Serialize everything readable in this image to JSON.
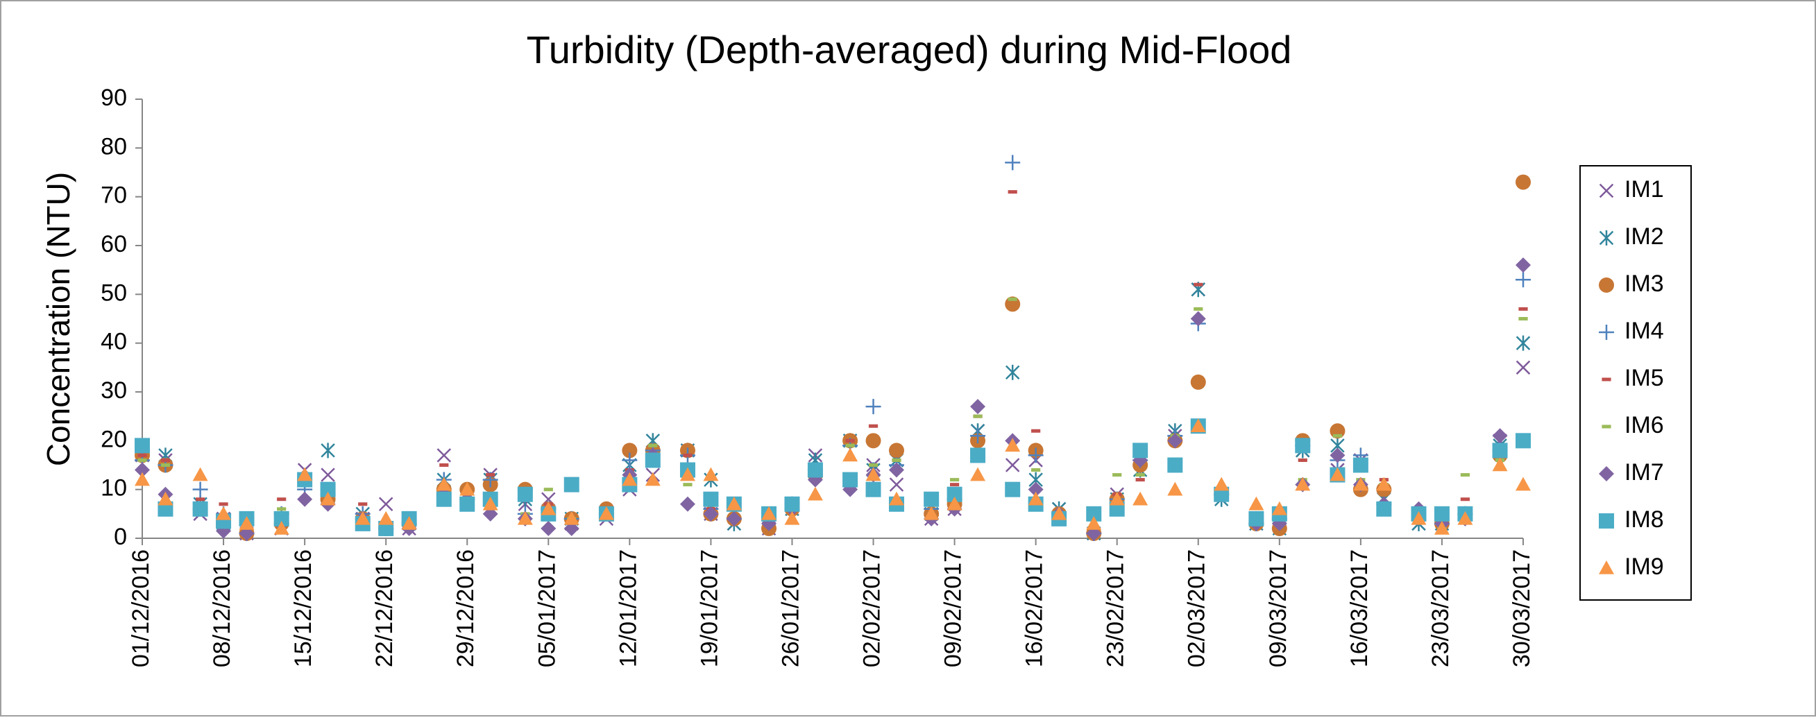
{
  "chart_data": {
    "type": "scatter",
    "title": "Turbidity (Depth-averaged) during Mid-Flood",
    "y_label": "Concentration (NTU)",
    "x": [
      "01/12/2016",
      "03/12/2016",
      "06/12/2016",
      "08/12/2016",
      "10/12/2016",
      "13/12/2016",
      "15/12/2016",
      "17/12/2016",
      "20/12/2016",
      "22/12/2016",
      "24/12/2016",
      "27/12/2016",
      "29/12/2016",
      "31/12/2016",
      "03/01/2017",
      "05/01/2017",
      "07/01/2017",
      "10/01/2017",
      "12/01/2017",
      "14/01/2017",
      "17/01/2017",
      "19/01/2017",
      "21/01/2017",
      "24/01/2017",
      "26/01/2017",
      "28/01/2017",
      "31/01/2017",
      "02/02/2017",
      "04/02/2017",
      "07/02/2017",
      "09/02/2017",
      "11/02/2017",
      "14/02/2017",
      "16/02/2017",
      "18/02/2017",
      "21/02/2017",
      "23/02/2017",
      "25/02/2017",
      "28/02/2017",
      "02/03/2017",
      "04/03/2017",
      "07/03/2017",
      "09/03/2017",
      "11/03/2017",
      "14/03/2017",
      "16/03/2017",
      "18/03/2017",
      "21/03/2017",
      "23/03/2017",
      "25/03/2017",
      "28/03/2017",
      "30/03/2017"
    ],
    "xlim": [
      "01/12/2016",
      "30/03/2017"
    ],
    "xticks": [
      "01/12/2016",
      "08/12/2016",
      "15/12/2016",
      "22/12/2016",
      "29/12/2016",
      "05/01/2017",
      "12/01/2017",
      "19/01/2017",
      "26/01/2017",
      "02/02/2017",
      "09/02/2017",
      "16/02/2017",
      "23/02/2017",
      "02/03/2017",
      "09/03/2017",
      "16/03/2017",
      "23/03/2017",
      "30/03/2017"
    ],
    "ylim": [
      0,
      90
    ],
    "yticks": [
      0,
      10,
      20,
      30,
      40,
      50,
      60,
      70,
      80,
      90
    ],
    "grid": false,
    "legend": "right",
    "series": [
      {
        "name": "IM1",
        "color": "#7e5a9b",
        "marker": "x",
        "values": [
          17,
          16,
          5,
          4,
          1,
          2,
          14,
          13,
          4,
          7,
          2,
          17,
          7,
          13,
          7,
          8,
          3,
          4,
          10,
          13,
          18,
          5,
          3,
          2,
          6,
          17,
          20,
          15,
          11,
          4,
          6,
          22,
          15,
          16,
          6,
          1,
          9,
          16,
          21,
          51,
          9,
          3,
          3,
          18,
          14,
          16,
          8,
          3,
          3,
          5,
          20,
          35
        ]
      },
      {
        "name": "IM2",
        "color": "#31859c",
        "marker": "asterisk",
        "values": [
          18,
          17,
          7,
          3,
          2,
          4,
          12,
          18,
          5,
          2,
          3,
          12,
          9,
          12,
          8,
          5,
          4,
          5,
          15,
          20,
          18,
          12,
          3,
          3,
          6,
          16,
          20,
          14,
          16,
          5,
          8,
          22,
          34,
          12,
          6,
          1,
          8,
          14,
          22,
          51,
          8,
          3,
          2,
          18,
          19,
          15,
          8,
          3,
          3,
          5,
          19,
          40
        ]
      },
      {
        "name": "IM3",
        "color": "#c77634",
        "marker": "circle",
        "values": [
          17,
          15,
          6,
          3,
          1,
          3,
          12,
          8,
          4,
          2,
          3,
          10,
          10,
          11,
          10,
          6,
          4,
          6,
          18,
          18,
          18,
          5,
          4,
          2,
          6,
          13,
          20,
          20,
          18,
          5,
          7,
          20,
          48,
          18,
          5,
          1,
          8,
          15,
          20,
          32,
          9,
          3,
          2,
          20,
          22,
          10,
          10,
          5,
          3,
          5,
          17,
          73
        ]
      },
      {
        "name": "IM4",
        "color": "#4f81bd",
        "marker": "plus",
        "values": [
          16,
          15,
          10,
          5,
          1,
          5,
          10,
          9,
          5,
          2,
          3,
          12,
          8,
          12,
          5,
          6,
          4,
          5,
          16,
          18,
          17,
          6,
          4,
          4,
          7,
          14,
          19,
          27,
          15,
          6,
          8,
          21,
          77,
          17,
          5,
          1,
          8,
          16,
          21,
          44,
          9,
          3,
          4,
          19,
          16,
          17,
          7,
          5,
          3,
          5,
          18,
          53
        ]
      },
      {
        "name": "IM5",
        "color": "#c0504d",
        "marker": "dash",
        "values": [
          17,
          16,
          8,
          7,
          2,
          8,
          12,
          10,
          7,
          3,
          4,
          15,
          9,
          13,
          8,
          7,
          4,
          6,
          14,
          17,
          17,
          6,
          4,
          4,
          8,
          15,
          20,
          23,
          16,
          7,
          11,
          25,
          71,
          22,
          5,
          1,
          9,
          12,
          21,
          52,
          10,
          3,
          4,
          16,
          21,
          14,
          12,
          6,
          3,
          8,
          17,
          47
        ]
      },
      {
        "name": "IM6",
        "color": "#9bbb59",
        "marker": "dash",
        "values": [
          16,
          15,
          7,
          4,
          1,
          6,
          11,
          9,
          4,
          2,
          3,
          10,
          9,
          9,
          5,
          10,
          4,
          6,
          13,
          19,
          11,
          5,
          4,
          4,
          7,
          13,
          19,
          15,
          16,
          7,
          12,
          25,
          49,
          14,
          5,
          1,
          13,
          13,
          21,
          47,
          8,
          3,
          5,
          12,
          21,
          12,
          11,
          5,
          2,
          13,
          16,
          45
        ]
      },
      {
        "name": "IM7",
        "color": "#8064a2",
        "marker": "diamond",
        "values": [
          14,
          9,
          6,
          1.5,
          1,
          3,
          8,
          7,
          4,
          2,
          2,
          9,
          8,
          5,
          4,
          2,
          2,
          5,
          13,
          17,
          7,
          5,
          4,
          3,
          6,
          12,
          10,
          13,
          14,
          4,
          6,
          27,
          20,
          10,
          5,
          1,
          7,
          16,
          20,
          45,
          9,
          3,
          3,
          11,
          17,
          11,
          7,
          6,
          3,
          4,
          21,
          56
        ]
      },
      {
        "name": "IM8",
        "color": "#4bacc6",
        "marker": "square",
        "values": [
          19,
          6,
          6,
          3.5,
          4,
          4,
          12,
          10,
          3,
          2,
          4,
          8,
          7,
          8,
          9,
          5,
          11,
          5,
          11,
          16,
          14,
          8,
          7,
          5,
          7,
          14,
          12,
          10,
          7,
          8,
          9,
          17,
          10,
          7,
          4,
          5,
          6,
          18,
          15,
          23,
          9,
          4,
          5,
          19,
          13,
          15,
          6,
          5,
          5,
          5,
          18,
          20
        ]
      },
      {
        "name": "IM9",
        "color": "#f79646",
        "marker": "triangle",
        "values": [
          12,
          8,
          13,
          5,
          3,
          2,
          13,
          8,
          4,
          4,
          3,
          11,
          10,
          7,
          4,
          6,
          4,
          5,
          12,
          12,
          13,
          13,
          7,
          5,
          4,
          9,
          17,
          13,
          8,
          5,
          7,
          13,
          19,
          8,
          5,
          3,
          8,
          8,
          10,
          23,
          11,
          7,
          6,
          11,
          13,
          11,
          11,
          4,
          2,
          4,
          15,
          11
        ]
      }
    ]
  }
}
